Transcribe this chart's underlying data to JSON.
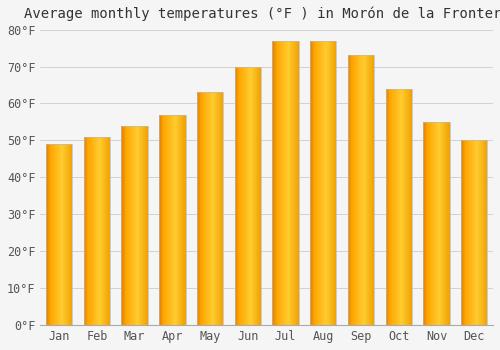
{
  "title": "Average monthly temperatures (°F ) in Morón de la Frontera",
  "months": [
    "Jan",
    "Feb",
    "Mar",
    "Apr",
    "May",
    "Jun",
    "Jul",
    "Aug",
    "Sep",
    "Oct",
    "Nov",
    "Dec"
  ],
  "values": [
    49,
    51,
    54,
    57,
    63,
    70,
    77,
    77,
    73,
    64,
    55,
    50
  ],
  "ylim": [
    0,
    80
  ],
  "yticks": [
    0,
    10,
    20,
    30,
    40,
    50,
    60,
    70,
    80
  ],
  "ytick_labels": [
    "0°F",
    "10°F",
    "20°F",
    "30°F",
    "40°F",
    "50°F",
    "60°F",
    "70°F",
    "80°F"
  ],
  "bar_color_main": "#FFA500",
  "bar_color_left": "#E08000",
  "bar_color_right": "#FFD070",
  "bar_edge_color": "#BBBBBB",
  "background_color": "#F5F5F5",
  "plot_bg_color": "#F5F5F5",
  "grid_color": "#CCCCCC",
  "title_fontsize": 10,
  "tick_fontsize": 8.5,
  "bar_width": 0.7,
  "n_gradient": 50
}
